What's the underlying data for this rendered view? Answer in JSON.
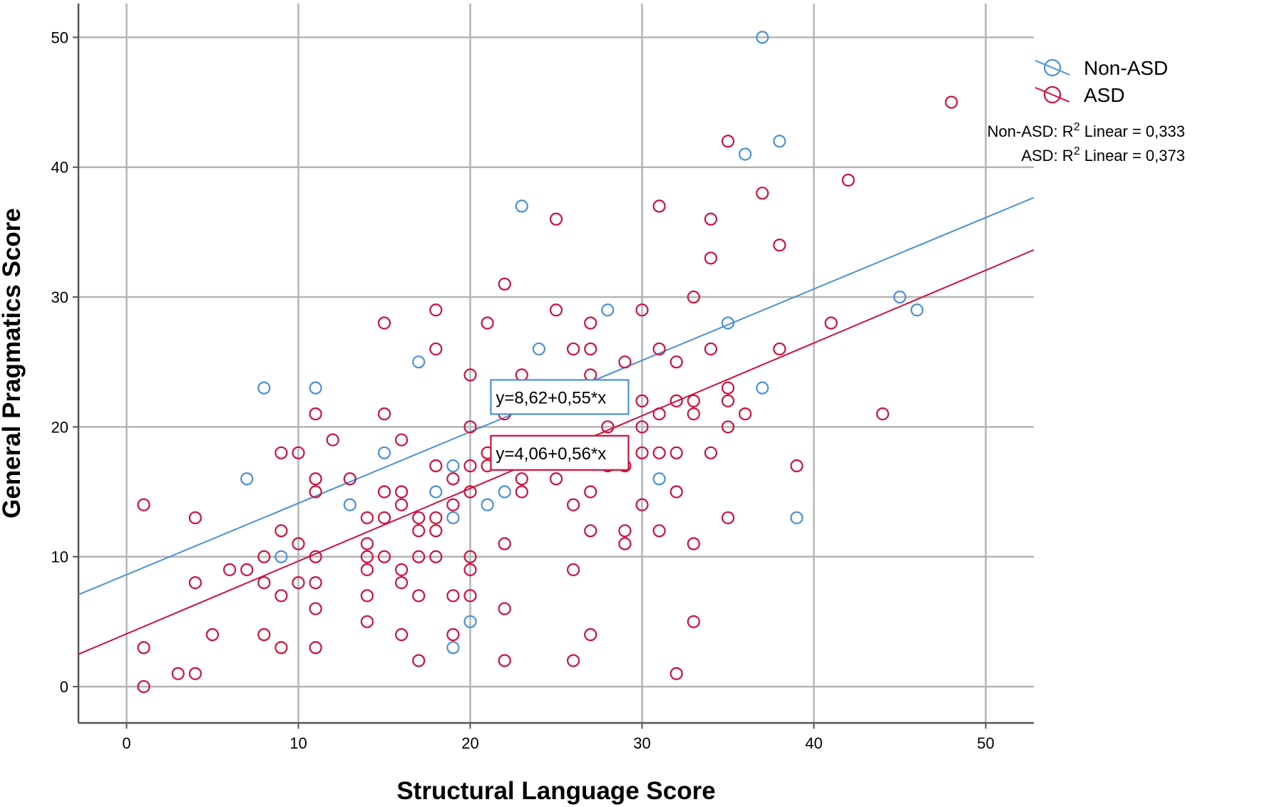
{
  "chart_data": {
    "type": "scatter",
    "title": "",
    "xlabel": "Structural Language Score",
    "ylabel": "General Pragmatics Score",
    "xlim": [
      -2.8,
      52.8
    ],
    "ylim": [
      -2.8,
      52.6
    ],
    "xticks": [
      0,
      10,
      20,
      30,
      40,
      50
    ],
    "yticks": [
      0,
      10,
      20,
      30,
      40,
      50
    ],
    "grid": true,
    "legend_position": "top-right",
    "series": [
      {
        "name": "Non-ASD",
        "color": "#4a90d9",
        "r2_label": "Non-ASD: R",
        "r2_suffix": " Linear = 0,333",
        "equation": "y=8,62+0,55*x",
        "fit": {
          "intercept": 8.62,
          "slope": 0.55
        },
        "points": [
          [
            37,
            50
          ],
          [
            36,
            41
          ],
          [
            38,
            42
          ],
          [
            23,
            37
          ],
          [
            45,
            30
          ],
          [
            46,
            29
          ],
          [
            28,
            29
          ],
          [
            35,
            28
          ],
          [
            24,
            26
          ],
          [
            17,
            25
          ],
          [
            8,
            23
          ],
          [
            11,
            23
          ],
          [
            37,
            23
          ],
          [
            15,
            18
          ],
          [
            7,
            16
          ],
          [
            31,
            16
          ],
          [
            13,
            14
          ],
          [
            21,
            14
          ],
          [
            19,
            17
          ],
          [
            18,
            15
          ],
          [
            22,
            15
          ],
          [
            39,
            13
          ],
          [
            19,
            13
          ],
          [
            9,
            10
          ],
          [
            20,
            5
          ],
          [
            19,
            3
          ]
        ]
      },
      {
        "name": "ASD",
        "color": "#d0103a",
        "r2_label": "ASD: R",
        "r2_suffix": " Linear = 0,373",
        "equation": "y=4,06+0,56*x",
        "fit": {
          "intercept": 4.06,
          "slope": 0.56
        },
        "points": [
          [
            48,
            45
          ],
          [
            35,
            42
          ],
          [
            42,
            39
          ],
          [
            37,
            38
          ],
          [
            31,
            37
          ],
          [
            25,
            36
          ],
          [
            34,
            36
          ],
          [
            38,
            34
          ],
          [
            34,
            33
          ],
          [
            22,
            31
          ],
          [
            33,
            30
          ],
          [
            18,
            29
          ],
          [
            25,
            29
          ],
          [
            30,
            29
          ],
          [
            15,
            28
          ],
          [
            21,
            28
          ],
          [
            27,
            28
          ],
          [
            41,
            28
          ],
          [
            18,
            26
          ],
          [
            26,
            26
          ],
          [
            27,
            26
          ],
          [
            31,
            26
          ],
          [
            34,
            26
          ],
          [
            38,
            26
          ],
          [
            29,
            25
          ],
          [
            32,
            25
          ],
          [
            20,
            24
          ],
          [
            23,
            24
          ],
          [
            27,
            24
          ],
          [
            35,
            23
          ],
          [
            30,
            22
          ],
          [
            32,
            22
          ],
          [
            33,
            22
          ],
          [
            35,
            22
          ],
          [
            11,
            21
          ],
          [
            15,
            21
          ],
          [
            22,
            21
          ],
          [
            31,
            21
          ],
          [
            33,
            21
          ],
          [
            36,
            21
          ],
          [
            44,
            21
          ],
          [
            20,
            20
          ],
          [
            28,
            20
          ],
          [
            30,
            20
          ],
          [
            35,
            20
          ],
          [
            12,
            19
          ],
          [
            16,
            19
          ],
          [
            9,
            18
          ],
          [
            10,
            18
          ],
          [
            21,
            18
          ],
          [
            30,
            18
          ],
          [
            31,
            18
          ],
          [
            32,
            18
          ],
          [
            34,
            18
          ],
          [
            18,
            17
          ],
          [
            20,
            17
          ],
          [
            21,
            17
          ],
          [
            28,
            17
          ],
          [
            29,
            17
          ],
          [
            39,
            17
          ],
          [
            11,
            16
          ],
          [
            13,
            16
          ],
          [
            19,
            16
          ],
          [
            23,
            16
          ],
          [
            25,
            16
          ],
          [
            11,
            15
          ],
          [
            15,
            15
          ],
          [
            16,
            15
          ],
          [
            20,
            15
          ],
          [
            23,
            15
          ],
          [
            27,
            15
          ],
          [
            32,
            15
          ],
          [
            1,
            14
          ],
          [
            16,
            14
          ],
          [
            19,
            14
          ],
          [
            26,
            14
          ],
          [
            30,
            14
          ],
          [
            4,
            13
          ],
          [
            14,
            13
          ],
          [
            15,
            13
          ],
          [
            17,
            13
          ],
          [
            18,
            13
          ],
          [
            35,
            13
          ],
          [
            9,
            12
          ],
          [
            17,
            12
          ],
          [
            18,
            12
          ],
          [
            27,
            12
          ],
          [
            29,
            12
          ],
          [
            31,
            12
          ],
          [
            10,
            11
          ],
          [
            14,
            11
          ],
          [
            22,
            11
          ],
          [
            29,
            11
          ],
          [
            33,
            11
          ],
          [
            8,
            10
          ],
          [
            11,
            10
          ],
          [
            14,
            10
          ],
          [
            15,
            10
          ],
          [
            17,
            10
          ],
          [
            18,
            10
          ],
          [
            20,
            10
          ],
          [
            6,
            9
          ],
          [
            7,
            9
          ],
          [
            14,
            9
          ],
          [
            16,
            9
          ],
          [
            20,
            9
          ],
          [
            26,
            9
          ],
          [
            4,
            8
          ],
          [
            8,
            8
          ],
          [
            10,
            8
          ],
          [
            11,
            8
          ],
          [
            16,
            8
          ],
          [
            9,
            7
          ],
          [
            14,
            7
          ],
          [
            17,
            7
          ],
          [
            19,
            7
          ],
          [
            20,
            7
          ],
          [
            11,
            6
          ],
          [
            22,
            6
          ],
          [
            14,
            5
          ],
          [
            33,
            5
          ],
          [
            5,
            4
          ],
          [
            8,
            4
          ],
          [
            16,
            4
          ],
          [
            19,
            4
          ],
          [
            27,
            4
          ],
          [
            1,
            3
          ],
          [
            9,
            3
          ],
          [
            11,
            3
          ],
          [
            3,
            1
          ],
          [
            4,
            1
          ],
          [
            32,
            1
          ],
          [
            17,
            2
          ],
          [
            22,
            2
          ],
          [
            26,
            2
          ],
          [
            1,
            0
          ]
        ]
      }
    ]
  }
}
